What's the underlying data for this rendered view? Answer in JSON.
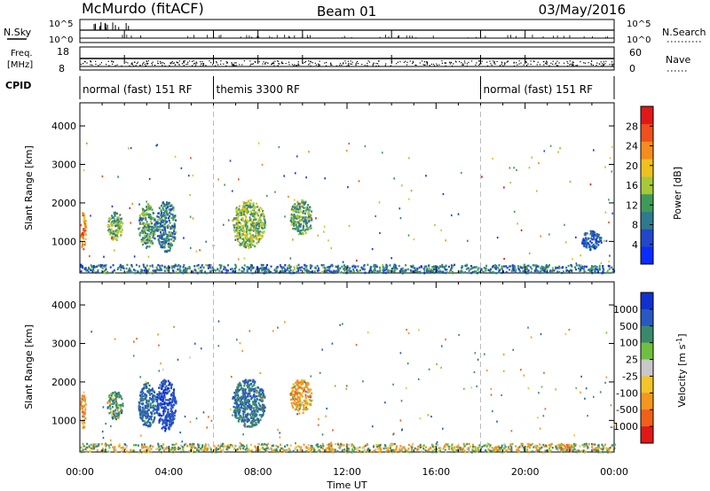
{
  "header": {
    "station": "McMurdo (fitACF)",
    "beam": "Beam 01",
    "date": "03/May/2016"
  },
  "panels": {
    "nsky": {
      "left_label": "N.Sky",
      "top_tick": "10^5",
      "bottom_tick": "10^0"
    },
    "nsearch": {
      "right_label": "N.Search",
      "top_tick": "10^5",
      "bottom_tick": "10^0"
    },
    "freq": {
      "left_label": "Freq.",
      "unit": "[MHz]",
      "top_tick": "18",
      "bottom_tick": "8"
    },
    "nave": {
      "right_label": "Nave",
      "top_tick": "60",
      "bottom_tick": "0"
    },
    "cpid": {
      "left_label": "CPID",
      "segments": [
        {
          "label": "normal (fast) 151 RF",
          "start_hour": 0,
          "end_hour": 6
        },
        {
          "label": "themis 3300 RF",
          "start_hour": 6,
          "end_hour": 18
        },
        {
          "label": "normal (fast) 151 RF",
          "start_hour": 18,
          "end_hour": 24
        }
      ]
    }
  },
  "chart_data": [
    {
      "type": "heatmap",
      "quantity": "power",
      "ylabel": "Slant Range [km]",
      "ylim": [
        180,
        4600
      ],
      "yticks": [
        "1000",
        "2000",
        "3000",
        "4000"
      ],
      "colorbar": {
        "label": "Power [dB]",
        "ticks": [
          "4",
          "8",
          "12",
          "16",
          "20",
          "24",
          "28"
        ],
        "range": [
          0,
          32
        ],
        "colors": [
          "#0a2cff",
          "#2048c8",
          "#2f7a8e",
          "#3f9a5a",
          "#a6c93a",
          "#f0c020",
          "#f58c1e",
          "#f0501c",
          "#e01818"
        ]
      },
      "echo_regions": [
        {
          "t0": 0.0,
          "t1": 0.25,
          "r0": 800,
          "r1": 1800,
          "power": 24
        },
        {
          "t0": 1.2,
          "t1": 1.9,
          "r0": 1050,
          "r1": 1800,
          "power": 14
        },
        {
          "t0": 2.6,
          "t1": 3.4,
          "r0": 850,
          "r1": 2000,
          "power": 12
        },
        {
          "t0": 3.4,
          "t1": 4.3,
          "r0": 750,
          "r1": 2100,
          "power": 10
        },
        {
          "t0": 6.8,
          "t1": 8.3,
          "r0": 850,
          "r1": 2100,
          "power": 15
        },
        {
          "t0": 9.4,
          "t1": 10.4,
          "r0": 1200,
          "r1": 2100,
          "power": 13
        },
        {
          "t0": 22.5,
          "t1": 23.4,
          "r0": 800,
          "r1": 1300,
          "power": 6
        },
        {
          "t0": 0.0,
          "t1": 24.0,
          "r0": 200,
          "r1": 420,
          "power": 9
        }
      ]
    },
    {
      "type": "heatmap",
      "quantity": "velocity",
      "xlabel": "Time UT",
      "xticks": [
        "00:00",
        "04:00",
        "08:00",
        "12:00",
        "16:00",
        "20:00",
        "00:00"
      ],
      "xlim_hours": [
        0,
        24
      ],
      "ylabel": "Slant Range [km]",
      "ylim": [
        180,
        4600
      ],
      "yticks": [
        "1000",
        "2000",
        "3000",
        "4000"
      ],
      "colorbar": {
        "label": "Velocity [m s^-1]",
        "ticks": [
          "1000",
          "500",
          "100",
          "25",
          "-25",
          "-100",
          "-500",
          "-1000"
        ],
        "colors": [
          "#1030d0",
          "#2858c0",
          "#3a8a6a",
          "#70c040",
          "#c8c8c8",
          "#f4c428",
          "#f5961e",
          "#f0601a",
          "#e01818"
        ]
      },
      "echo_regions": [
        {
          "t0": 0.0,
          "t1": 0.25,
          "r0": 800,
          "r1": 1800,
          "velocity": -300
        },
        {
          "t0": 1.2,
          "t1": 1.9,
          "r0": 1050,
          "r1": 1800,
          "velocity": 200
        },
        {
          "t0": 2.6,
          "t1": 3.4,
          "r0": 850,
          "r1": 2000,
          "velocity": 600
        },
        {
          "t0": 3.4,
          "t1": 4.3,
          "r0": 750,
          "r1": 2100,
          "velocity": 900
        },
        {
          "t0": 6.8,
          "t1": 8.3,
          "r0": 850,
          "r1": 2100,
          "velocity": 500
        },
        {
          "t0": 9.4,
          "t1": 10.4,
          "r0": 1200,
          "r1": 2100,
          "velocity": -200
        },
        {
          "t0": 21.3,
          "t1": 22.2,
          "r0": 250,
          "r1": 400,
          "velocity": -500
        },
        {
          "t0": 0.0,
          "t1": 24.0,
          "r0": 200,
          "r1": 420,
          "velocity": 0
        }
      ]
    }
  ]
}
